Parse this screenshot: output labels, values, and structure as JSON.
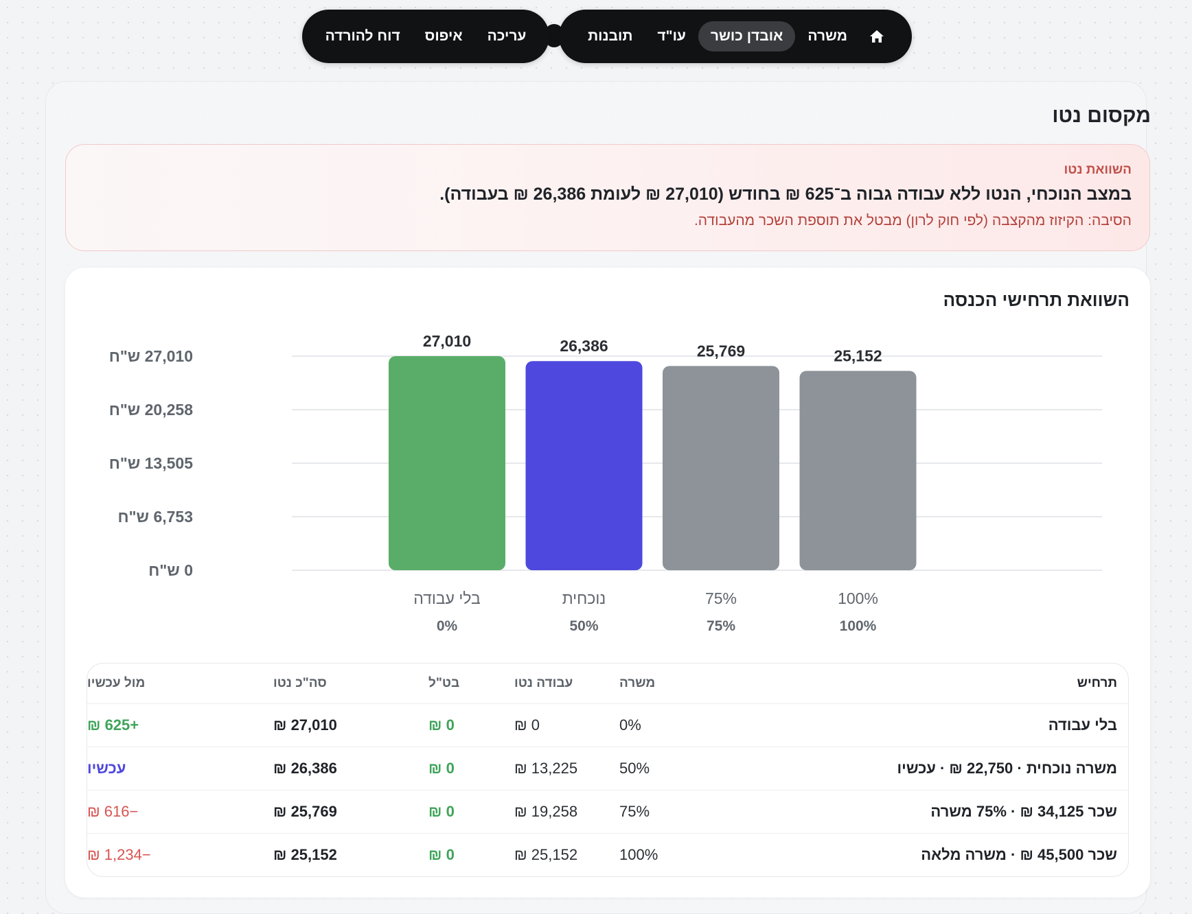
{
  "nav": {
    "main_items": [
      "משרה",
      "אובדן כושר",
      "עו\"ד",
      "תובנות"
    ],
    "active_item": "אובדן כושר",
    "action_items": [
      "עריכה",
      "איפוס",
      "דוח להורדה"
    ]
  },
  "page": {
    "title": "מקסום נטו"
  },
  "alert": {
    "eyebrow": "השוואת נטו",
    "headline": "במצב הנוכחי, הנטו ללא עבודה גבוה ב־625 ₪ בחודש (27,010 ₪ לעומת 26,386 ₪ בעבודה).",
    "reason": "הסיבה: הקיזוז מהקצבה (לפי חוק לרון) מבטל את תוספת השכר מהעבודה."
  },
  "chart": {
    "title": "השוואת תרחישי הכנסה"
  },
  "chart_data": {
    "type": "bar",
    "title": "השוואת תרחישי הכנסה",
    "categories": [
      "בלי עבודה",
      "נוכחית",
      "75%",
      "100%"
    ],
    "sublabels": [
      "0%",
      "50%",
      "75%",
      "100%"
    ],
    "values": [
      27010,
      26386,
      25769,
      25152
    ],
    "value_labels": [
      "27,010",
      "26,386",
      "25,769",
      "25,152"
    ],
    "colors": [
      "#5aad69",
      "#4e48de",
      "#8d9398",
      "#8d9398"
    ],
    "yticks": [
      0,
      6753,
      13505,
      20258,
      27010
    ],
    "ytick_labels": [
      "0 ש\"ח",
      "6,753 ש\"ח",
      "13,505 ש\"ח",
      "20,258 ש\"ח",
      "27,010 ש\"ח"
    ],
    "ylim": [
      0,
      27010
    ],
    "grid": true
  },
  "table": {
    "headers": [
      "תרחיש",
      "משרה",
      "עבודה נטו",
      "בט\"ל",
      "סה\"כ נטו",
      "מול עכשיו"
    ],
    "rows": [
      {
        "scenario": "בלי עבודה",
        "job": "0%",
        "work": "0 ₪",
        "unemp": "0 ₪",
        "total": "27,010 ₪",
        "diff": "+625 ₪",
        "diff_kind": "pos"
      },
      {
        "scenario": "משרה נוכחית · 22,750 ₪ · עכשיו",
        "job": "50%",
        "work": "13,225 ₪",
        "unemp": "0 ₪",
        "total": "26,386 ₪",
        "diff": "עכשיו",
        "diff_kind": "now"
      },
      {
        "scenario": "שכר 34,125 ₪ · 75% משרה",
        "job": "75%",
        "work": "19,258 ₪",
        "unemp": "0 ₪",
        "total": "25,769 ₪",
        "diff": "−616 ₪",
        "diff_kind": "neg"
      },
      {
        "scenario": "שכר 45,500 ₪ · משרה מלאה",
        "job": "100%",
        "work": "25,152 ₪",
        "unemp": "0 ₪",
        "total": "25,152 ₪",
        "diff": "−1,234 ₪",
        "diff_kind": "neg"
      }
    ]
  }
}
